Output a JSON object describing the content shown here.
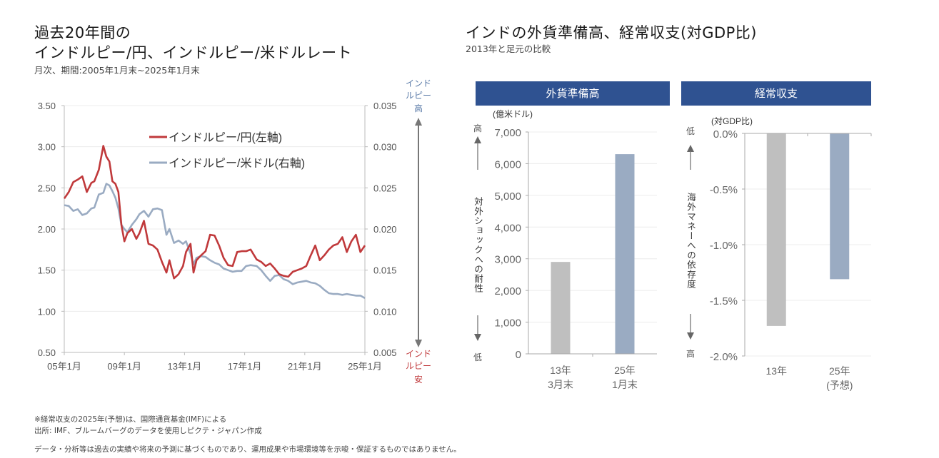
{
  "left": {
    "title_line1": "過去20年間の",
    "title_line2": "インドルピー/円、インドルピー/米ドルレート",
    "subtitle": "月次、期間:2005年1月末~2025年1月末"
  },
  "right": {
    "title": "インドの外貨準備高、経常収支(対GDP比)",
    "subtitle": "2013年と足元の比較",
    "panel1_header": "外貨準備高",
    "panel2_header": "経常収支"
  },
  "footer": {
    "note1": "※経常収支の2025年(予想)は、国際通貨基金(IMF)による",
    "note2": "出所: IMF、ブルームバーグのデータを使用しピクテ・ジャパン作成",
    "disclaimer": "データ・分析等は過去の実績や将来の予測に基づくものであり、運用成果や市場環境等を示唆・保証するものではありません。"
  },
  "colors": {
    "inr_jpy": "#c0393b",
    "inr_usd": "#9aabc2",
    "bar_2013": "#bfbfbf",
    "bar_2025": "#9aabc2",
    "header_bg": "#2f5291",
    "rupee_high": "#5b7ba8",
    "rupee_low": "#c0393b"
  },
  "chart_data": [
    {
      "type": "line",
      "title": "インドルピー/円、インドルピー/米ドルレート",
      "xlabel": "",
      "x_ticks": [
        "05年1月",
        "09年1月",
        "13年1月",
        "17年1月",
        "21年1月",
        "25年1月"
      ],
      "x_range": [
        2005.0,
        2025.0
      ],
      "y_left": {
        "ticks": [
          "0.50",
          "1.00",
          "1.50",
          "2.00",
          "2.50",
          "3.00",
          "3.50"
        ],
        "range": [
          0.5,
          3.5
        ]
      },
      "y_right": {
        "ticks": [
          "0.005",
          "0.010",
          "0.015",
          "0.020",
          "0.025",
          "0.030",
          "0.035"
        ],
        "range": [
          0.005,
          0.035
        ]
      },
      "right_annotation_top": [
        "インド",
        "ルピー",
        "高"
      ],
      "right_annotation_bottom": [
        "インド",
        "ルピー",
        "安"
      ],
      "legend": "top-center",
      "grid": true,
      "series": [
        {
          "name": "インドルピー/円(左軸)",
          "axis": "left",
          "x": [
            2005.0,
            2005.3,
            2005.6,
            2005.9,
            2006.2,
            2006.5,
            2006.8,
            2007.0,
            2007.3,
            2007.6,
            2007.8,
            2008.0,
            2008.2,
            2008.4,
            2008.6,
            2008.8,
            2009.0,
            2009.2,
            2009.5,
            2009.8,
            2010.0,
            2010.3,
            2010.6,
            2010.9,
            2011.2,
            2011.5,
            2011.8,
            2012.0,
            2012.3,
            2012.6,
            2012.9,
            2013.1,
            2013.4,
            2013.6,
            2013.8,
            2014.1,
            2014.4,
            2014.7,
            2015.0,
            2015.3,
            2015.6,
            2015.9,
            2016.2,
            2016.5,
            2016.8,
            2017.1,
            2017.4,
            2017.8,
            2018.1,
            2018.4,
            2018.7,
            2019.0,
            2019.3,
            2019.6,
            2019.9,
            2020.2,
            2020.5,
            2020.8,
            2021.1,
            2021.4,
            2021.7,
            2022.0,
            2022.3,
            2022.6,
            2022.9,
            2023.2,
            2023.5,
            2023.8,
            2024.1,
            2024.4,
            2024.7,
            2025.0
          ],
          "values": [
            2.37,
            2.45,
            2.57,
            2.6,
            2.64,
            2.45,
            2.56,
            2.58,
            2.72,
            3.01,
            2.88,
            2.82,
            2.58,
            2.55,
            2.45,
            2.05,
            1.85,
            1.95,
            2.0,
            1.88,
            1.95,
            2.1,
            1.82,
            1.8,
            1.75,
            1.6,
            1.47,
            1.62,
            1.4,
            1.45,
            1.55,
            1.72,
            1.82,
            1.47,
            1.62,
            1.68,
            1.73,
            1.93,
            1.92,
            1.8,
            1.65,
            1.56,
            1.55,
            1.72,
            1.73,
            1.73,
            1.75,
            1.63,
            1.6,
            1.55,
            1.58,
            1.52,
            1.45,
            1.43,
            1.42,
            1.48,
            1.5,
            1.52,
            1.55,
            1.68,
            1.8,
            1.62,
            1.68,
            1.75,
            1.8,
            1.82,
            1.9,
            1.72,
            1.85,
            1.93,
            1.72,
            1.8
          ]
        },
        {
          "name": "インドルピー/米ドル(右軸)",
          "axis": "right",
          "x": [
            2005.0,
            2005.3,
            2005.6,
            2005.9,
            2006.2,
            2006.5,
            2006.8,
            2007.0,
            2007.3,
            2007.6,
            2007.8,
            2008.0,
            2008.2,
            2008.4,
            2008.6,
            2008.8,
            2009.0,
            2009.2,
            2009.5,
            2009.8,
            2010.0,
            2010.3,
            2010.6,
            2010.9,
            2011.2,
            2011.5,
            2011.8,
            2012.0,
            2012.3,
            2012.6,
            2012.9,
            2013.1,
            2013.4,
            2013.6,
            2013.8,
            2014.1,
            2014.4,
            2014.7,
            2015.0,
            2015.3,
            2015.6,
            2015.9,
            2016.2,
            2016.5,
            2016.8,
            2017.1,
            2017.4,
            2017.8,
            2018.1,
            2018.4,
            2018.7,
            2019.0,
            2019.3,
            2019.6,
            2019.9,
            2020.2,
            2020.5,
            2020.8,
            2021.1,
            2021.4,
            2021.7,
            2022.0,
            2022.3,
            2022.6,
            2022.9,
            2023.2,
            2023.5,
            2023.8,
            2024.1,
            2024.4,
            2024.7,
            2025.0
          ],
          "values": [
            0.0229,
            0.0228,
            0.0222,
            0.0224,
            0.0217,
            0.0219,
            0.0225,
            0.0226,
            0.0242,
            0.0244,
            0.0255,
            0.0253,
            0.0246,
            0.0238,
            0.0225,
            0.0205,
            0.02,
            0.0196,
            0.0205,
            0.0212,
            0.0218,
            0.0222,
            0.0215,
            0.0224,
            0.0225,
            0.0223,
            0.0193,
            0.02,
            0.0183,
            0.0186,
            0.0182,
            0.0185,
            0.017,
            0.0157,
            0.0165,
            0.0167,
            0.0166,
            0.0162,
            0.0159,
            0.0157,
            0.0152,
            0.015,
            0.0148,
            0.0149,
            0.0149,
            0.0155,
            0.0156,
            0.0155,
            0.015,
            0.0143,
            0.0137,
            0.0143,
            0.0144,
            0.0139,
            0.0137,
            0.0133,
            0.0135,
            0.0136,
            0.0137,
            0.0135,
            0.0134,
            0.0131,
            0.0126,
            0.0122,
            0.0121,
            0.0121,
            0.012,
            0.0121,
            0.012,
            0.0119,
            0.0119,
            0.0116
          ]
        }
      ]
    },
    {
      "type": "bar",
      "title": "外貨準備高",
      "unit_label": "(億米ドル)",
      "categories": [
        [
          "13年",
          "3月末"
        ],
        [
          "25年",
          "1月末"
        ]
      ],
      "values": [
        2900,
        6300
      ],
      "ylim": [
        0,
        7000
      ],
      "y_ticks": [
        "0",
        "1,000",
        "2,000",
        "3,000",
        "4,000",
        "5,000",
        "6,000",
        "7,000"
      ],
      "side_label_top": "高",
      "side_label_bottom": "低",
      "side_label_text": "対外ショックへの耐性",
      "grid": true
    },
    {
      "type": "bar",
      "title": "経常収支",
      "unit_label": "(対GDP比)",
      "categories": [
        [
          "13年"
        ],
        [
          "25年",
          "(予想)"
        ]
      ],
      "values": [
        -1.73,
        -1.31
      ],
      "ylim": [
        -2.0,
        0.0
      ],
      "y_ticks": [
        "-2.0%",
        "-1.5%",
        "-1.0%",
        "-0.5%",
        "0.0%"
      ],
      "side_label_top": "低",
      "side_label_bottom": "高",
      "side_label_text": "海外マネーへの依存度",
      "grid": true
    }
  ]
}
